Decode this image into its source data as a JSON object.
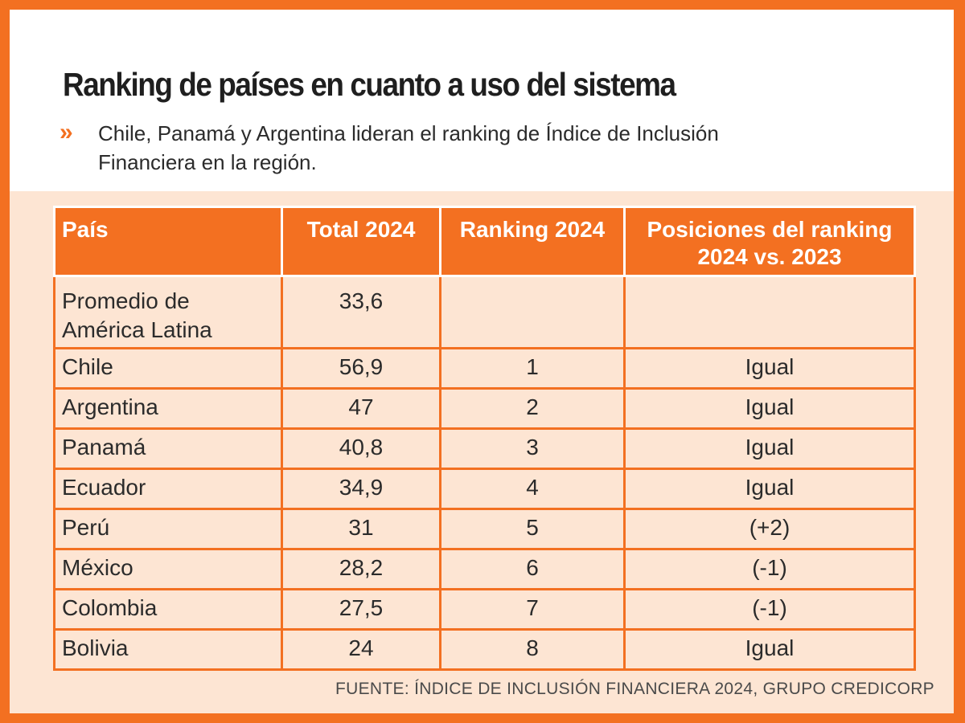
{
  "colors": {
    "brand_orange": "#F37021",
    "panel_peach": "#FDE5D3",
    "header_white": "#FFFFFF",
    "text_dark": "#2B2B2B"
  },
  "header": {
    "title": "Ranking de países en cuanto a uso del sistema",
    "bullet_icon": "double-chevron-right",
    "bullet_glyph": "»",
    "subtitle": "Chile, Panamá y Argentina lideran el ranking de Índice de Inclusión Financiera en la región."
  },
  "table": {
    "columns": [
      "País",
      "Total 2024",
      "Ranking 2024",
      "Posiciones del ranking 2024 vs. 2023"
    ],
    "rows": [
      {
        "pais": "Promedio de América Latina",
        "total": "33,6",
        "ranking": "",
        "posiciones": ""
      },
      {
        "pais": "Chile",
        "total": "56,9",
        "ranking": "1",
        "posiciones": "Igual"
      },
      {
        "pais": "Argentina",
        "total": "47",
        "ranking": "2",
        "posiciones": "Igual"
      },
      {
        "pais": "Panamá",
        "total": "40,8",
        "ranking": "3",
        "posiciones": "Igual"
      },
      {
        "pais": "Ecuador",
        "total": "34,9",
        "ranking": "4",
        "posiciones": "Igual"
      },
      {
        "pais": "Perú",
        "total": "31",
        "ranking": "5",
        "posiciones": "(+2)"
      },
      {
        "pais": "México",
        "total": "28,2",
        "ranking": "6",
        "posiciones": "(-1)"
      },
      {
        "pais": "Colombia",
        "total": "27,5",
        "ranking": "7",
        "posiciones": "(-1)"
      },
      {
        "pais": "Bolivia",
        "total": "24",
        "ranking": "8",
        "posiciones": "Igual"
      }
    ]
  },
  "source": "FUENTE: ÍNDICE DE INCLUSIÓN FINANCIERA 2024, GRUPO CREDICORP"
}
